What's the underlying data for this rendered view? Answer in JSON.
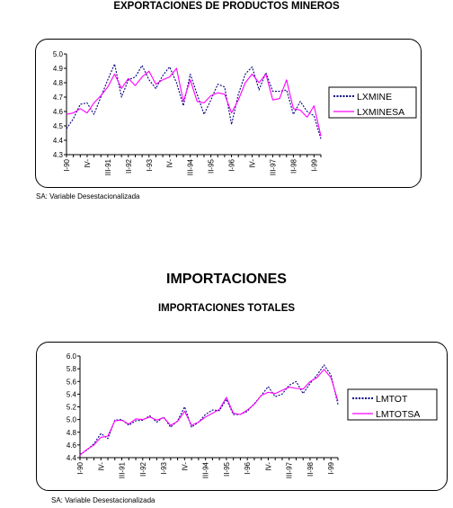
{
  "page": {
    "title_top": "EXPORTACIONES DE PRODUCTOS MINEROS",
    "note_top": "SA: Variable Desestacionalizada",
    "section_heading": "IMPORTACIONES",
    "title_bottom": "IMPORTACIONES TOTALES",
    "note_bottom": "SA: Variable Desestacionalizada"
  },
  "colors": {
    "original": "#000080",
    "seasonal": "#ff00ff"
  },
  "chart_data": [
    {
      "type": "line",
      "title": "EXPORTACIONES DE PRODUCTOS MINEROS",
      "ylim": [
        4.3,
        5.0
      ],
      "yticks": [
        "5.0",
        "4.9",
        "4.8",
        "4.7",
        "4.6",
        "4.5",
        "4.4",
        "4.3"
      ],
      "ytick_values": [
        5.0,
        4.9,
        4.8,
        4.7,
        4.6,
        4.5,
        4.4,
        4.3
      ],
      "x_count": 38,
      "xtick_labels": [
        "I-90",
        "IV-",
        "III-91",
        "II-92",
        "I-93",
        "IV-",
        "III-94",
        "II-95",
        "I-96",
        "IV-",
        "III-97",
        "II-98",
        "I-99"
      ],
      "xtick_indices": [
        0,
        3,
        6,
        9,
        12,
        15,
        18,
        21,
        24,
        27,
        30,
        33,
        36
      ],
      "legend": "right",
      "grid": false,
      "series": [
        {
          "name": "LXMINE",
          "style": "dotted",
          "values": [
            4.48,
            4.55,
            4.65,
            4.66,
            4.58,
            4.7,
            4.82,
            4.93,
            4.7,
            4.82,
            4.84,
            4.92,
            4.82,
            4.76,
            4.85,
            4.91,
            4.8,
            4.64,
            4.86,
            4.72,
            4.58,
            4.68,
            4.79,
            4.77,
            4.51,
            4.72,
            4.86,
            4.91,
            4.75,
            4.87,
            4.74,
            4.74,
            4.75,
            4.58,
            4.67,
            4.6,
            4.57,
            4.41
          ]
        },
        {
          "name": "LXMINESA",
          "style": "solid",
          "values": [
            4.58,
            4.59,
            4.62,
            4.59,
            4.66,
            4.71,
            4.77,
            4.86,
            4.76,
            4.83,
            4.78,
            4.84,
            4.88,
            4.79,
            4.82,
            4.84,
            4.9,
            4.67,
            4.82,
            4.67,
            4.66,
            4.71,
            4.73,
            4.72,
            4.59,
            4.68,
            4.8,
            4.86,
            4.8,
            4.86,
            4.68,
            4.69,
            4.82,
            4.62,
            4.61,
            4.56,
            4.64,
            4.43
          ]
        }
      ]
    },
    {
      "type": "line",
      "title": "IMPORTACIONES TOTALES",
      "ylim": [
        4.4,
        6.0
      ],
      "yticks": [
        "6.0",
        "5.8",
        "5.6",
        "5.4",
        "5.2",
        "5.0",
        "4.8",
        "4.6",
        "4.4"
      ],
      "ytick_values": [
        6.0,
        5.8,
        5.6,
        5.4,
        5.2,
        5.0,
        4.8,
        4.6,
        4.4
      ],
      "x_count": 38,
      "xtick_labels": [
        "I-90",
        "IV-",
        "III-91",
        "II-92",
        "I-93",
        "IV-",
        "III-94",
        "II-95",
        "I-96",
        "IV-",
        "III-97",
        "II-98",
        "I-99"
      ],
      "xtick_indices": [
        0,
        3,
        6,
        9,
        12,
        15,
        18,
        21,
        24,
        27,
        30,
        33,
        36
      ],
      "legend": "right",
      "grid": false,
      "series": [
        {
          "name": "LMTOT",
          "style": "dotted",
          "values": [
            4.45,
            4.52,
            4.62,
            4.78,
            4.7,
            4.99,
            5.0,
            4.91,
            4.98,
            4.99,
            5.06,
            4.96,
            5.04,
            4.88,
            4.98,
            5.2,
            4.88,
            4.96,
            5.08,
            5.15,
            5.14,
            5.32,
            5.08,
            5.08,
            5.13,
            5.25,
            5.38,
            5.52,
            5.36,
            5.4,
            5.54,
            5.6,
            5.41,
            5.57,
            5.7,
            5.86,
            5.7,
            5.24
          ]
        },
        {
          "name": "LMTOTSA",
          "style": "solid",
          "values": [
            4.44,
            4.53,
            4.6,
            4.72,
            4.74,
            4.98,
            4.99,
            4.93,
            5.01,
            5.0,
            5.04,
            4.99,
            5.03,
            4.91,
            4.97,
            5.13,
            4.91,
            4.96,
            5.04,
            5.1,
            5.16,
            5.35,
            5.1,
            5.08,
            5.15,
            5.24,
            5.38,
            5.43,
            5.41,
            5.46,
            5.51,
            5.49,
            5.48,
            5.6,
            5.66,
            5.79,
            5.66,
            5.29
          ]
        }
      ]
    }
  ]
}
